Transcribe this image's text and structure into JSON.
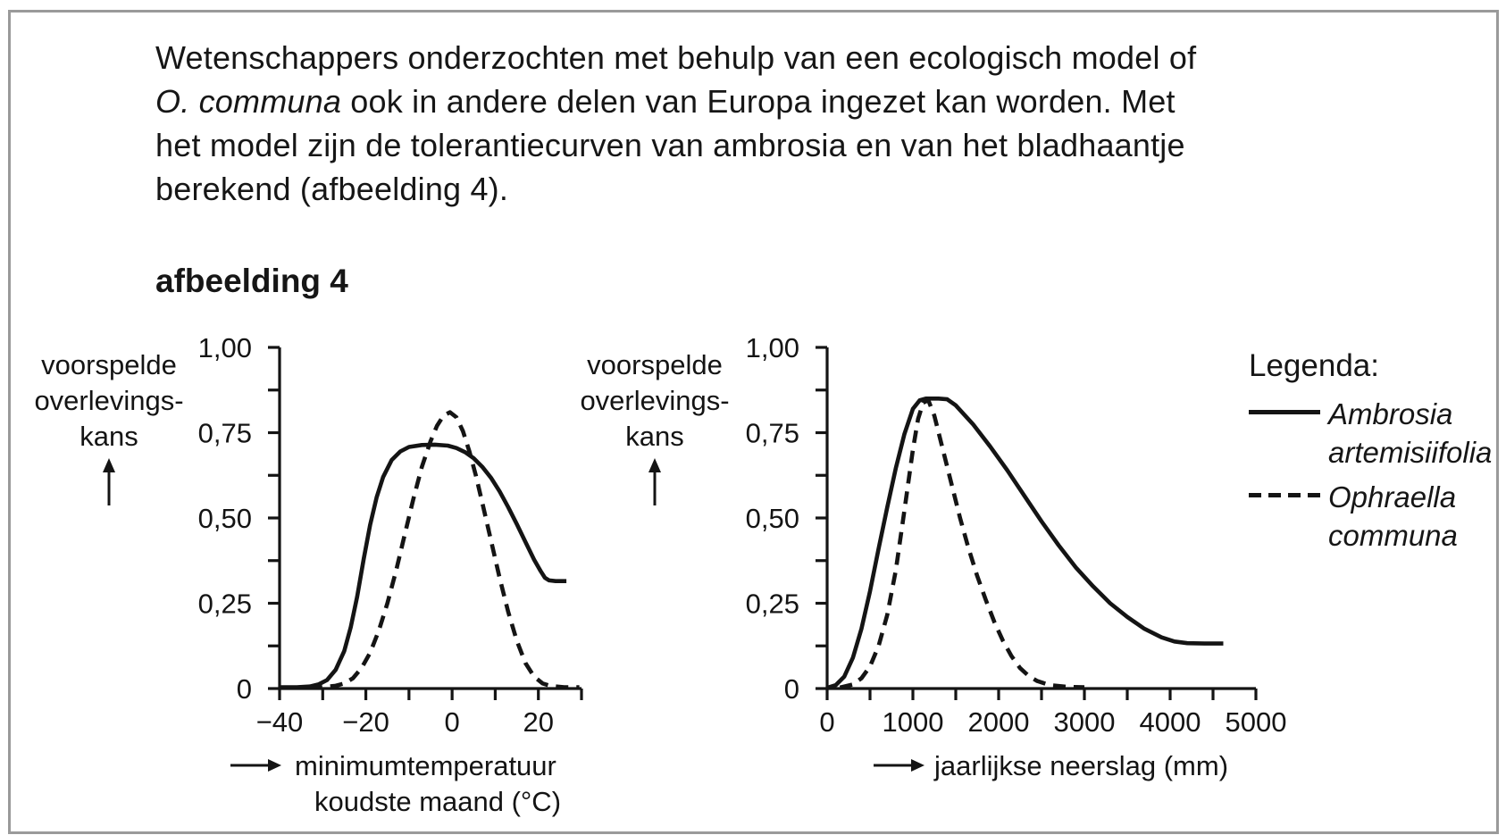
{
  "page": {
    "figure_label": "afbeelding 4",
    "intro_lines": [
      [
        {
          "t": "Wetenschappers onderzochten met behulp van een ecologisch model of",
          "i": false
        }
      ],
      [
        {
          "t": "O. communa",
          "i": true
        },
        {
          "t": " ook in andere delen van Europa ingezet kan worden. Met",
          "i": false
        }
      ],
      [
        {
          "t": "het model zijn de tolerantiecurven van ambrosia en van het bladhaantje",
          "i": false
        }
      ],
      [
        {
          "t": "berekend (afbeelding 4).",
          "i": false
        }
      ]
    ]
  },
  "legend": {
    "title": "Legenda:",
    "entries": [
      {
        "style": "solid",
        "label_lines": [
          "Ambrosia",
          "artemisiifolia"
        ]
      },
      {
        "style": "dashed",
        "label_lines": [
          "Ophraella",
          "communa"
        ]
      }
    ]
  },
  "colors": {
    "ink": "#141414",
    "frame": "#9a9a9a",
    "background": "#ffffff"
  },
  "chart_data": [
    {
      "type": "line",
      "ylabel_lines": [
        "voorspelde",
        "overlevings-",
        "kans"
      ],
      "xlabel_lines": [
        "minimumtemperatuur",
        "koudste maand (°C)"
      ],
      "x_range": [
        -40,
        30
      ],
      "y_range": [
        0,
        1
      ],
      "grid": false,
      "x_ticks": [
        {
          "v": -40,
          "label": "−40"
        },
        {
          "v": -30
        },
        {
          "v": -20,
          "label": "−20"
        },
        {
          "v": -10
        },
        {
          "v": 0,
          "label": "0"
        },
        {
          "v": 10
        },
        {
          "v": 20,
          "label": "20"
        },
        {
          "v": 30
        }
      ],
      "y_ticks": [
        {
          "v": 0,
          "label": "0"
        },
        {
          "v": 0.125
        },
        {
          "v": 0.25,
          "label": "0,25"
        },
        {
          "v": 0.375
        },
        {
          "v": 0.5,
          "label": "0,50"
        },
        {
          "v": 0.625
        },
        {
          "v": 0.75,
          "label": "0,75"
        },
        {
          "v": 0.875
        },
        {
          "v": 1,
          "label": "1,00"
        }
      ],
      "series": [
        {
          "name": "Ambrosia artemisiifolia",
          "line": "solid",
          "points": [
            [
              -40,
              0.004
            ],
            [
              -36,
              0.004
            ],
            [
              -33,
              0.006
            ],
            [
              -31,
              0.012
            ],
            [
              -29,
              0.025
            ],
            [
              -27,
              0.055
            ],
            [
              -25,
              0.11
            ],
            [
              -23.5,
              0.18
            ],
            [
              -22,
              0.27
            ],
            [
              -20.5,
              0.38
            ],
            [
              -19,
              0.48
            ],
            [
              -17.5,
              0.56
            ],
            [
              -16,
              0.62
            ],
            [
              -14,
              0.67
            ],
            [
              -12,
              0.695
            ],
            [
              -10,
              0.708
            ],
            [
              -7,
              0.714
            ],
            [
              -4,
              0.715
            ],
            [
              -1,
              0.712
            ],
            [
              1,
              0.705
            ],
            [
              3,
              0.693
            ],
            [
              5,
              0.675
            ],
            [
              7,
              0.65
            ],
            [
              9,
              0.618
            ],
            [
              11,
              0.578
            ],
            [
              13,
              0.532
            ],
            [
              15,
              0.482
            ],
            [
              17,
              0.43
            ],
            [
              19,
              0.378
            ],
            [
              20.5,
              0.345
            ],
            [
              21.5,
              0.325
            ],
            [
              22.5,
              0.317
            ],
            [
              24,
              0.315
            ],
            [
              26.5,
              0.315
            ]
          ]
        },
        {
          "name": "Ophraella communa",
          "line": "dashed",
          "points": [
            [
              -33,
              0.003
            ],
            [
              -30,
              0.004
            ],
            [
              -27,
              0.008
            ],
            [
              -25,
              0.015
            ],
            [
              -23,
              0.03
            ],
            [
              -21,
              0.06
            ],
            [
              -19,
              0.105
            ],
            [
              -17,
              0.17
            ],
            [
              -15,
              0.25
            ],
            [
              -13,
              0.345
            ],
            [
              -11,
              0.45
            ],
            [
              -9,
              0.555
            ],
            [
              -7,
              0.65
            ],
            [
              -5,
              0.725
            ],
            [
              -3.5,
              0.77
            ],
            [
              -2,
              0.8
            ],
            [
              -0.5,
              0.81
            ],
            [
              1,
              0.795
            ],
            [
              2.5,
              0.755
            ],
            [
              4,
              0.695
            ],
            [
              5.5,
              0.625
            ],
            [
              7,
              0.545
            ],
            [
              9,
              0.435
            ],
            [
              11,
              0.325
            ],
            [
              13,
              0.225
            ],
            [
              15,
              0.14
            ],
            [
              17,
              0.075
            ],
            [
              19,
              0.035
            ],
            [
              21,
              0.015
            ],
            [
              23,
              0.007
            ],
            [
              26,
              0.004
            ],
            [
              29.5,
              0.004
            ]
          ]
        }
      ]
    },
    {
      "type": "line",
      "ylabel_lines": [
        "voorspelde",
        "overlevings-",
        "kans"
      ],
      "xlabel_lines": [
        "jaarlijkse neerslag (mm)"
      ],
      "x_range": [
        0,
        5000
      ],
      "y_range": [
        0,
        1
      ],
      "grid": false,
      "x_ticks": [
        {
          "v": 0,
          "label": "0"
        },
        {
          "v": 500
        },
        {
          "v": 1000,
          "label": "1000"
        },
        {
          "v": 1500
        },
        {
          "v": 2000,
          "label": "2000"
        },
        {
          "v": 2500
        },
        {
          "v": 3000,
          "label": "3000"
        },
        {
          "v": 3500
        },
        {
          "v": 4000,
          "label": "4000"
        },
        {
          "v": 4500
        },
        {
          "v": 5000,
          "label": "5000"
        }
      ],
      "y_ticks": [
        {
          "v": 0,
          "label": "0"
        },
        {
          "v": 0.125
        },
        {
          "v": 0.25,
          "label": "0,25"
        },
        {
          "v": 0.375
        },
        {
          "v": 0.5,
          "label": "0,50"
        },
        {
          "v": 0.625
        },
        {
          "v": 0.75,
          "label": "0,75"
        },
        {
          "v": 0.875
        },
        {
          "v": 1,
          "label": "1,00"
        }
      ],
      "series": [
        {
          "name": "Ambrosia artemisiifolia",
          "line": "solid",
          "points": [
            [
              0,
              0.002
            ],
            [
              100,
              0.01
            ],
            [
              200,
              0.035
            ],
            [
              300,
              0.09
            ],
            [
              400,
              0.175
            ],
            [
              500,
              0.285
            ],
            [
              600,
              0.41
            ],
            [
              700,
              0.53
            ],
            [
              800,
              0.645
            ],
            [
              900,
              0.745
            ],
            [
              1000,
              0.82
            ],
            [
              1080,
              0.845
            ],
            [
              1150,
              0.85
            ],
            [
              1300,
              0.85
            ],
            [
              1400,
              0.848
            ],
            [
              1500,
              0.83
            ],
            [
              1700,
              0.775
            ],
            [
              1900,
              0.71
            ],
            [
              2100,
              0.64
            ],
            [
              2300,
              0.565
            ],
            [
              2500,
              0.49
            ],
            [
              2700,
              0.42
            ],
            [
              2900,
              0.355
            ],
            [
              3100,
              0.3
            ],
            [
              3300,
              0.25
            ],
            [
              3500,
              0.21
            ],
            [
              3700,
              0.175
            ],
            [
              3900,
              0.15
            ],
            [
              4050,
              0.138
            ],
            [
              4200,
              0.133
            ],
            [
              4400,
              0.132
            ],
            [
              4620,
              0.132
            ]
          ]
        },
        {
          "name": "Ophraella communa",
          "line": "dashed",
          "points": [
            [
              150,
              0.003
            ],
            [
              300,
              0.012
            ],
            [
              400,
              0.03
            ],
            [
              500,
              0.065
            ],
            [
              600,
              0.125
            ],
            [
              700,
              0.215
            ],
            [
              800,
              0.345
            ],
            [
              900,
              0.52
            ],
            [
              1000,
              0.7
            ],
            [
              1060,
              0.79
            ],
            [
              1120,
              0.838
            ],
            [
              1180,
              0.845
            ],
            [
              1250,
              0.8
            ],
            [
              1350,
              0.7
            ],
            [
              1450,
              0.6
            ],
            [
              1550,
              0.5
            ],
            [
              1650,
              0.41
            ],
            [
              1750,
              0.33
            ],
            [
              1850,
              0.26
            ],
            [
              1950,
              0.195
            ],
            [
              2050,
              0.14
            ],
            [
              2150,
              0.095
            ],
            [
              2250,
              0.06
            ],
            [
              2350,
              0.037
            ],
            [
              2450,
              0.022
            ],
            [
              2600,
              0.01
            ],
            [
              2800,
              0.005
            ],
            [
              3000,
              0.004
            ]
          ]
        }
      ]
    }
  ]
}
